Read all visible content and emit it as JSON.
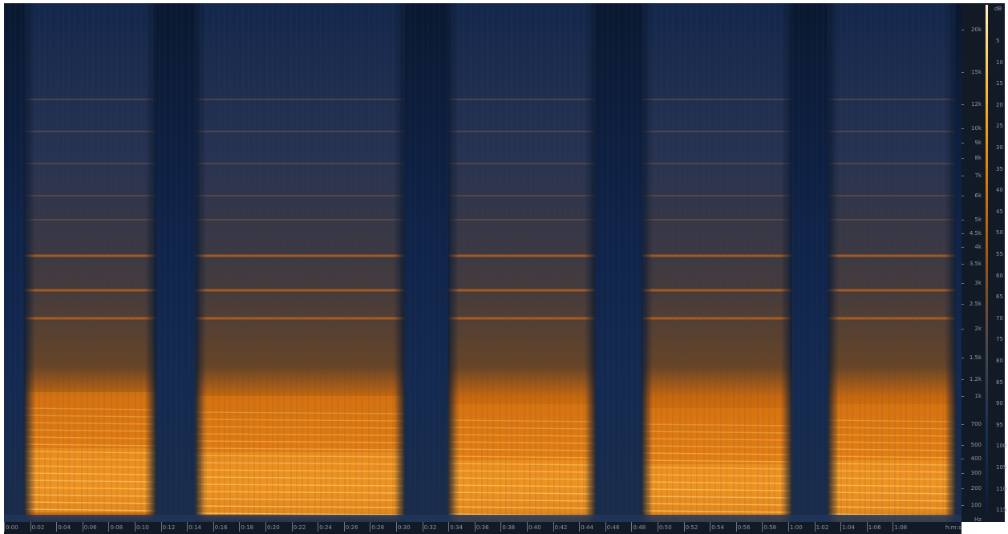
{
  "spectrogram": {
    "colors": {
      "background": "#0c1b33",
      "low": "#1a3156",
      "mid": "#b5620f",
      "high": "#f59a1f",
      "peak": "#ffe39a"
    }
  },
  "frequency_axis": {
    "unit": "Hz",
    "ticks": [
      "20k",
      "15k",
      "12k",
      "10k",
      "9k",
      "8k",
      "7k",
      "6k",
      "5k",
      "4.5k",
      "4k",
      "3.5k",
      "3k",
      "2.5k",
      "2k",
      "1.5k",
      "1.2k",
      "1k",
      "700",
      "500",
      "400",
      "300",
      "200",
      "100"
    ]
  },
  "db_axis": {
    "unit": "dB",
    "ticks": [
      "5",
      "10",
      "15",
      "20",
      "25",
      "30",
      "35",
      "40",
      "45",
      "50",
      "55",
      "60",
      "65",
      "70",
      "75",
      "80",
      "85",
      "90",
      "95",
      "100",
      "105",
      "110",
      "115"
    ]
  },
  "time_axis": {
    "unit": "h:m:s",
    "ticks": [
      "0:00",
      "0:02",
      "0:04",
      "0:06",
      "0:08",
      "0:10",
      "0:12",
      "0:14",
      "0:16",
      "0:18",
      "0:20",
      "0:22",
      "0:24",
      "0:26",
      "0:28",
      "0:30",
      "0:32",
      "0:34",
      "0:36",
      "0:38",
      "0:40",
      "0:42",
      "0:44",
      "0:46",
      "0:48",
      "0:50",
      "0:52",
      "0:54",
      "0:56",
      "0:58",
      "1:00",
      "1:02",
      "1:04",
      "1:06",
      "1:08"
    ]
  }
}
